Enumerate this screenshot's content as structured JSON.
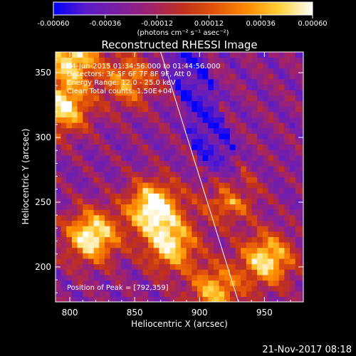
{
  "colorbar": {
    "tick_labels": [
      "-0.00060",
      "-0.00036",
      "-0.00012",
      "0.00012",
      "0.00036",
      "0.00060"
    ],
    "tick_values": [
      -0.0006,
      -0.00036,
      -0.00012,
      0.00012,
      0.00036,
      0.0006
    ],
    "range": [
      -0.0006,
      0.0006
    ],
    "units_label": "(photons cm⁻² s⁻¹ asec⁻²)",
    "colors": [
      "#0000ff",
      "#5a1cc8",
      "#7b1fa2",
      "#a0226e",
      "#c0301c",
      "#e3550a",
      "#ff8c00",
      "#ffd23c",
      "#ffffff"
    ]
  },
  "chart_data": {
    "type": "heatmap",
    "title": "Reconstructed RHESSI Image",
    "xlabel": "Heliocentric X (arcsec)",
    "ylabel": "Heliocentric Y (arcsec)",
    "xlim": [
      789,
      980
    ],
    "ylim": [
      173,
      366
    ],
    "x_ticks": [
      800,
      850,
      900,
      950
    ],
    "y_ticks": [
      200,
      250,
      300,
      350
    ],
    "x_tick_labels": [
      "800",
      "850",
      "900",
      "950"
    ],
    "y_tick_labels": [
      "200",
      "250",
      "300",
      "350"
    ],
    "limb_line": {
      "x": [
        870,
        930
      ],
      "y": [
        366,
        173
      ]
    },
    "info_lines": [
      "14-Jun-2015 01:34:56.000 to 01:44:56.000",
      "Detectors: 3F 5F 6F 7F 8F 9F, Att 0",
      "Energy Range: 12.0 - 25.0 keV",
      "Clean     Total counts: 1.50E+04"
    ],
    "peak_label": "Position of Peak = [792,359]",
    "peak": {
      "x": 792,
      "y": 359
    },
    "bright_sources": [
      {
        "x": 862,
        "y": 244,
        "amp": 1.0
      },
      {
        "x": 815,
        "y": 222,
        "amp": 0.95
      },
      {
        "x": 876,
        "y": 215,
        "amp": 0.8
      },
      {
        "x": 793,
        "y": 322,
        "amp": 0.85
      },
      {
        "x": 950,
        "y": 204,
        "amp": 0.85
      },
      {
        "x": 920,
        "y": 253,
        "amp": 0.6
      },
      {
        "x": 843,
        "y": 342,
        "amp": 0.6
      },
      {
        "x": 910,
        "y": 180,
        "amp": 0.7
      },
      {
        "x": 800,
        "y": 360,
        "amp": 0.85
      }
    ]
  },
  "footer": {
    "date": "21-Nov-2017 08:18"
  }
}
